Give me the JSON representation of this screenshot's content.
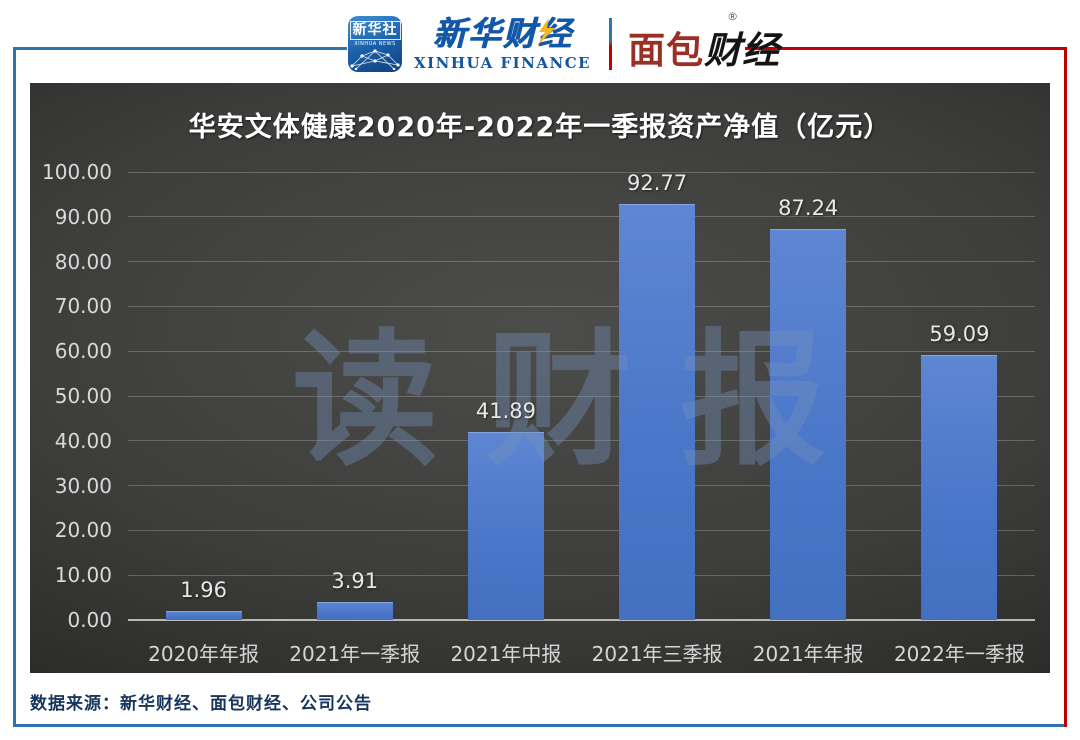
{
  "header": {
    "xinhua_news_badge": {
      "title": "新华社",
      "subtitle": "XINHUA NEWS"
    },
    "xinhua_finance": {
      "cn": "新华财经",
      "en": "XINHUA FINANCE"
    },
    "mianbao_caijing": {
      "cn_red": "面包",
      "cn_black": "财经",
      "reg_mark": "®"
    }
  },
  "chart_data": {
    "type": "bar",
    "title": "华安文体健康2020年-2022年一季报资产净值（亿元）",
    "categories": [
      "2020年年报",
      "2021年一季报",
      "2021年中报",
      "2021年三季报",
      "2021年年报",
      "2022年一季报"
    ],
    "values": [
      1.96,
      3.91,
      41.89,
      92.77,
      87.24,
      59.09
    ],
    "value_labels": [
      "1.96",
      "3.91",
      "41.89",
      "92.77",
      "87.24",
      "59.09"
    ],
    "xlabel": "",
    "ylabel": "",
    "ylim": [
      0,
      100
    ],
    "ytick_step": 10,
    "ytick_labels": [
      "0.00",
      "10.00",
      "20.00",
      "30.00",
      "40.00",
      "50.00",
      "60.00",
      "70.00",
      "80.00",
      "90.00",
      "100.00"
    ],
    "grid": true,
    "legend": "none",
    "bar_color": "#4f7ac8",
    "background_theme": "dark"
  },
  "watermark": {
    "text": "读财报"
  },
  "footer": {
    "source": "数据来源：新华财经、面包财经、公司公告"
  },
  "colors": {
    "frame_blue": "#2e74b5",
    "frame_red": "#c00000",
    "panel_center": "#4c4c4a",
    "panel_edge": "#1f1f1e",
    "grid": "#e0e0e0",
    "text_light": "#d9d9d9",
    "title_white": "#ffffff",
    "source_navy": "#17365d"
  }
}
